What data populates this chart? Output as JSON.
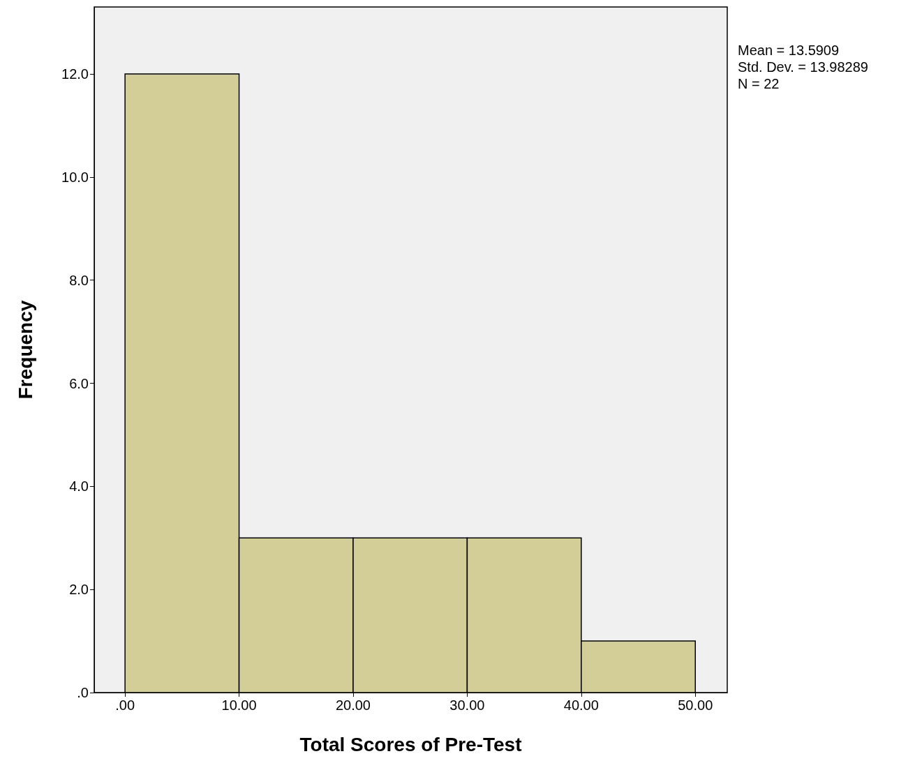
{
  "chart_data": {
    "type": "histogram",
    "xlabel": "Total Scores of Pre-Test",
    "ylabel": "Frequency",
    "bins": [
      0,
      10,
      20,
      30,
      40,
      50
    ],
    "values": [
      12,
      3,
      3,
      3,
      1
    ],
    "color": "#d3ce97",
    "xlim": [
      -2.7,
      52.8
    ],
    "xticks": [
      {
        "value": 0,
        "label": ".00"
      },
      {
        "value": 10,
        "label": "10.00"
      },
      {
        "value": 20,
        "label": "20.00"
      },
      {
        "value": 30,
        "label": "30.00"
      },
      {
        "value": 40,
        "label": "40.00"
      },
      {
        "value": 50,
        "label": "50.00"
      }
    ],
    "ylim": [
      0,
      13.3
    ],
    "yticks": [
      {
        "value": 0,
        "label": ".0"
      },
      {
        "value": 2,
        "label": "2.0"
      },
      {
        "value": 4,
        "label": "4.0"
      },
      {
        "value": 6,
        "label": "6.0"
      },
      {
        "value": 8,
        "label": "8.0"
      },
      {
        "value": 10,
        "label": "10.0"
      },
      {
        "value": 12,
        "label": "12.0"
      }
    ],
    "annotations": [
      "Mean = 13.5909",
      "Std. Dev. = 13.98289",
      "N = 22"
    ],
    "grid": false
  }
}
